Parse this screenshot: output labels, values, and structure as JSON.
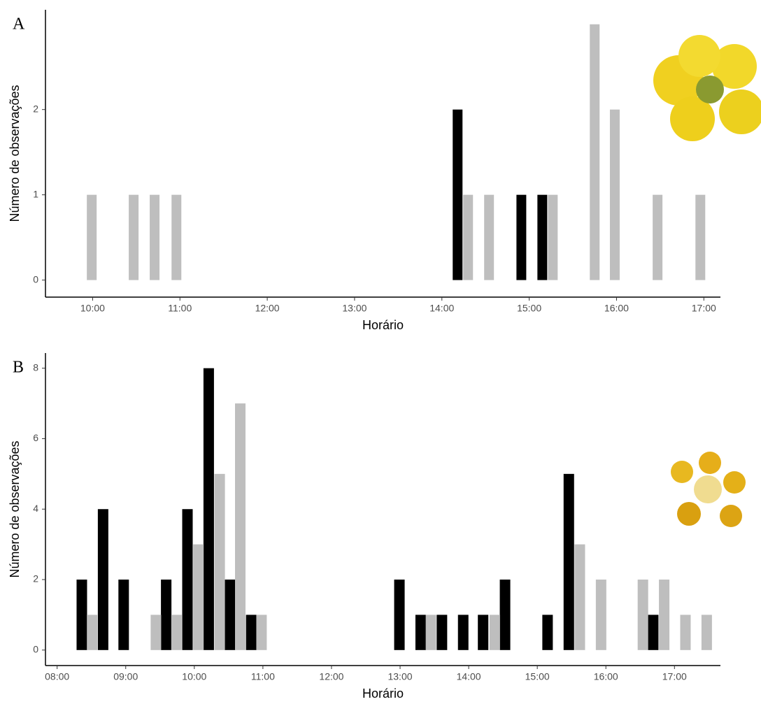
{
  "chart_data": [
    {
      "type": "bar",
      "label": "A",
      "xlabel": "Horário",
      "ylabel": "Número de observações",
      "xlim": [
        9.46,
        17.19
      ],
      "ylim": [
        -0.2,
        3.17
      ],
      "xticks": [
        {
          "value": 10,
          "label": "10:00"
        },
        {
          "value": 11,
          "label": "11:00"
        },
        {
          "value": 12,
          "label": "12:00"
        },
        {
          "value": 13,
          "label": "13:00"
        },
        {
          "value": 14,
          "label": "14:00"
        },
        {
          "value": 15,
          "label": "15:00"
        },
        {
          "value": 16,
          "label": "16:00"
        },
        {
          "value": 17,
          "label": "17:00"
        }
      ],
      "yticks": [
        0,
        1,
        2
      ],
      "series": [
        {
          "color": "#000000",
          "x": [
            14.18,
            14.91,
            15.15
          ],
          "values": [
            2,
            1,
            1
          ]
        },
        {
          "color": "#bebebe",
          "x": [
            9.99,
            10.47,
            10.71,
            10.96,
            14.3,
            14.54,
            15.27,
            15.75,
            15.98,
            16.47,
            16.96
          ],
          "values": [
            1,
            1,
            1,
            1,
            1,
            1,
            1,
            3,
            2,
            1,
            1
          ]
        }
      ]
    },
    {
      "type": "bar",
      "label": "B",
      "xlabel": "Horário",
      "ylabel": "Número de observações",
      "xlim": [
        7.83,
        17.67
      ],
      "ylim": [
        -0.44,
        8.43
      ],
      "xticks": [
        {
          "value": 8,
          "label": "08:00"
        },
        {
          "value": 9,
          "label": "09:00"
        },
        {
          "value": 10,
          "label": "10:00"
        },
        {
          "value": 11,
          "label": "11:00"
        },
        {
          "value": 12,
          "label": "12:00"
        },
        {
          "value": 13,
          "label": "13:00"
        },
        {
          "value": 14,
          "label": "14:00"
        },
        {
          "value": 15,
          "label": "15:00"
        },
        {
          "value": 16,
          "label": "16:00"
        },
        {
          "value": 17,
          "label": "17:00"
        }
      ],
      "yticks": [
        0,
        2,
        4,
        6,
        8
      ],
      "series": [
        {
          "color": "#000000",
          "x": [
            8.36,
            8.67,
            8.97,
            9.59,
            9.9,
            10.21,
            10.52,
            10.83,
            12.99,
            13.3,
            13.61,
            13.92,
            14.21,
            14.53,
            15.15,
            15.46,
            16.69
          ],
          "values": [
            2,
            4,
            2,
            2,
            4,
            8,
            2,
            1,
            2,
            1,
            1,
            1,
            1,
            2,
            1,
            5,
            1
          ]
        },
        {
          "color": "#bebebe",
          "x": [
            8.51,
            9.44,
            9.74,
            10.06,
            10.37,
            10.67,
            10.98,
            13.45,
            14.38,
            15.62,
            15.93,
            16.54,
            16.85,
            17.16,
            17.47
          ],
          "values": [
            1,
            1,
            1,
            3,
            5,
            7,
            1,
            1,
            1,
            3,
            2,
            2,
            2,
            1,
            1
          ]
        }
      ]
    }
  ]
}
